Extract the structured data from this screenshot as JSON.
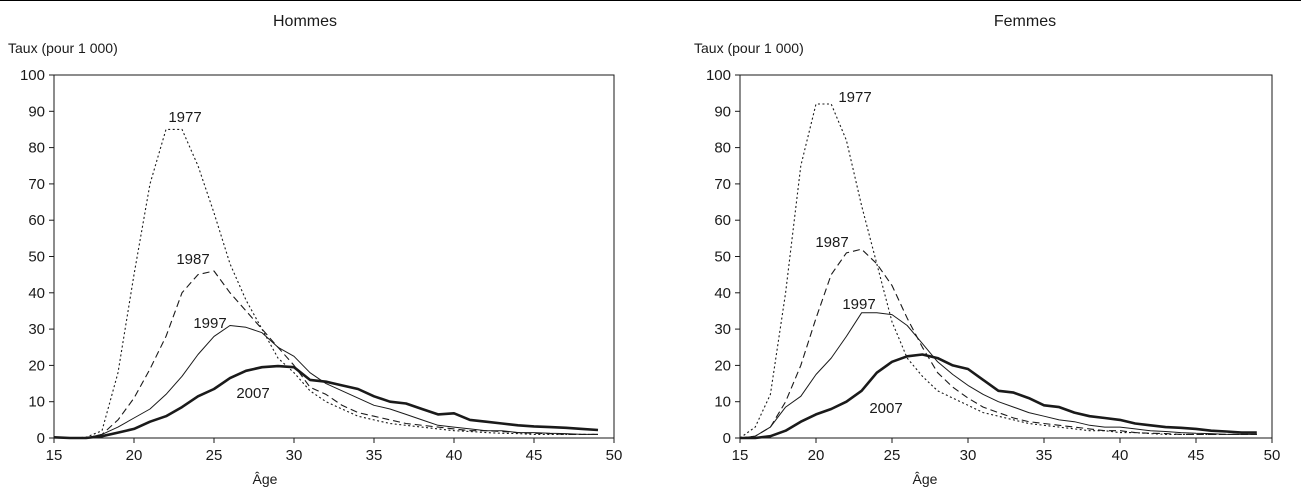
{
  "chart_data": [
    {
      "type": "line",
      "title": "Hommes",
      "ylabel": "Taux (pour 1 000)",
      "xlabel": "Âge",
      "xlim": [
        15,
        50
      ],
      "ylim": [
        0,
        100
      ],
      "xticks": [
        15,
        20,
        25,
        30,
        35,
        40,
        45,
        50
      ],
      "yticks": [
        0,
        10,
        20,
        30,
        40,
        50,
        60,
        70,
        80,
        90,
        100
      ],
      "grid": false,
      "series": [
        {
          "name": "1977",
          "style": "dotted",
          "x": [
            15,
            16,
            17,
            18,
            19,
            20,
            21,
            22,
            23,
            24,
            25,
            26,
            27,
            28,
            29,
            30,
            31,
            32,
            33,
            34,
            35,
            36,
            37,
            38,
            39,
            40,
            41,
            42,
            43,
            44,
            45,
            46,
            47,
            48,
            49
          ],
          "y": [
            0.2,
            0,
            0.2,
            2,
            18,
            45,
            70,
            85,
            85,
            75,
            62,
            48,
            38,
            30,
            22,
            18,
            13,
            10,
            8,
            6,
            5,
            4,
            3.5,
            3,
            2.5,
            2,
            1.8,
            1.5,
            1.3,
            1.2,
            1,
            1,
            1,
            1,
            1
          ]
        },
        {
          "name": "1987",
          "style": "dashed",
          "x": [
            15,
            16,
            17,
            18,
            19,
            20,
            21,
            22,
            23,
            24,
            25,
            26,
            27,
            28,
            29,
            30,
            31,
            32,
            33,
            34,
            35,
            36,
            37,
            38,
            39,
            40,
            41,
            42,
            43,
            44,
            45,
            46,
            47,
            48,
            49
          ],
          "y": [
            0.2,
            0,
            0,
            1,
            5,
            11,
            19,
            28,
            40,
            45,
            46,
            40,
            35,
            30,
            25,
            20,
            14,
            12,
            9,
            7,
            6,
            5,
            4,
            3.5,
            3,
            2.5,
            2,
            2,
            1.8,
            1.5,
            1.3,
            1.2,
            1,
            1,
            1
          ]
        },
        {
          "name": "1997",
          "style": "thin",
          "x": [
            15,
            16,
            17,
            18,
            19,
            20,
            21,
            22,
            23,
            24,
            25,
            26,
            27,
            28,
            29,
            30,
            31,
            32,
            33,
            34,
            35,
            36,
            37,
            38,
            39,
            40,
            41,
            42,
            43,
            44,
            45,
            46,
            47,
            48,
            49
          ],
          "y": [
            0.2,
            0,
            0,
            1,
            3,
            5.5,
            8,
            12,
            17,
            23,
            28,
            31,
            30.5,
            29,
            25,
            22.5,
            18,
            15,
            13,
            11,
            9,
            8,
            6.5,
            5,
            3.5,
            3,
            2.5,
            2,
            2,
            1.5,
            1.5,
            1.3,
            1.2,
            1,
            1
          ]
        },
        {
          "name": "2007",
          "style": "bold",
          "x": [
            15,
            16,
            17,
            18,
            19,
            20,
            21,
            22,
            23,
            24,
            25,
            26,
            27,
            28,
            29,
            30,
            31,
            32,
            33,
            34,
            35,
            36,
            37,
            38,
            39,
            40,
            41,
            42,
            43,
            44,
            45,
            46,
            47,
            48,
            49
          ],
          "y": [
            0.2,
            0,
            0,
            0.5,
            1.5,
            2.5,
            4.5,
            6,
            8.5,
            11.5,
            13.5,
            16.5,
            18.5,
            19.5,
            19.8,
            19.5,
            16,
            15.5,
            14.5,
            13.5,
            11.5,
            10,
            9.5,
            8,
            6.5,
            6.8,
            5,
            4.5,
            4,
            3.5,
            3.2,
            3,
            2.8,
            2.5,
            2.2
          ]
        }
      ]
    },
    {
      "type": "line",
      "title": "Femmes",
      "ylabel": "Taux (pour 1 000)",
      "xlabel": "Âge",
      "xlim": [
        15,
        50
      ],
      "ylim": [
        0,
        100
      ],
      "xticks": [
        15,
        20,
        25,
        30,
        35,
        40,
        45,
        50
      ],
      "yticks": [
        0,
        10,
        20,
        30,
        40,
        50,
        60,
        70,
        80,
        90,
        100
      ],
      "grid": false,
      "series": [
        {
          "name": "1977",
          "style": "dotted",
          "x": [
            15,
            16,
            17,
            18,
            19,
            20,
            21,
            22,
            23,
            24,
            25,
            26,
            27,
            28,
            29,
            30,
            31,
            32,
            33,
            34,
            35,
            36,
            37,
            38,
            39,
            40,
            41,
            42,
            43,
            44,
            45,
            46,
            47,
            48,
            49
          ],
          "y": [
            0,
            3,
            12,
            40,
            75,
            92,
            92,
            82,
            64,
            48,
            32,
            22,
            17,
            13,
            11,
            9,
            7,
            6,
            5,
            4,
            3.5,
            3,
            2.5,
            2,
            2,
            1.5,
            1.5,
            1.2,
            1,
            1,
            1,
            1,
            1,
            1,
            1
          ]
        },
        {
          "name": "1987",
          "style": "dashed",
          "x": [
            15,
            16,
            17,
            18,
            19,
            20,
            21,
            22,
            23,
            24,
            25,
            26,
            27,
            28,
            29,
            30,
            31,
            32,
            33,
            34,
            35,
            36,
            37,
            38,
            39,
            40,
            41,
            42,
            43,
            44,
            45,
            46,
            47,
            48,
            49
          ],
          "y": [
            0,
            0.5,
            3,
            10,
            20,
            33,
            45,
            51,
            52,
            48,
            42,
            33,
            25,
            18,
            14,
            11,
            8.5,
            7,
            5.5,
            4.5,
            4,
            3.5,
            3,
            2.5,
            2,
            2,
            1.5,
            1.3,
            1.2,
            1,
            1,
            1,
            1,
            1,
            1
          ]
        },
        {
          "name": "1997",
          "style": "thin",
          "x": [
            15,
            16,
            17,
            18,
            19,
            20,
            21,
            22,
            23,
            24,
            25,
            26,
            27,
            28,
            29,
            30,
            31,
            32,
            33,
            34,
            35,
            36,
            37,
            38,
            39,
            40,
            41,
            42,
            43,
            44,
            45,
            46,
            47,
            48,
            49
          ],
          "y": [
            0,
            0.5,
            3,
            8.5,
            11.5,
            17.5,
            22,
            28,
            34.5,
            34.5,
            34,
            31,
            26,
            21,
            17.5,
            14.5,
            12,
            10,
            8.5,
            7,
            6,
            5,
            4.5,
            3.5,
            3,
            3,
            2.5,
            2,
            1.8,
            1.5,
            1.3,
            1.2,
            1,
            1,
            1
          ]
        },
        {
          "name": "2007",
          "style": "bold",
          "x": [
            15,
            16,
            17,
            18,
            19,
            20,
            21,
            22,
            23,
            24,
            25,
            26,
            27,
            28,
            29,
            30,
            31,
            32,
            33,
            34,
            35,
            36,
            37,
            38,
            39,
            40,
            41,
            42,
            43,
            44,
            45,
            46,
            47,
            48,
            49
          ],
          "y": [
            0,
            0,
            0.5,
            2,
            4.5,
            6.5,
            8,
            10,
            13,
            18,
            21,
            22.5,
            23,
            22,
            20,
            19,
            16,
            13,
            12.5,
            11,
            9,
            8.5,
            7,
            6,
            5.5,
            5,
            4,
            3.5,
            3,
            2.8,
            2.5,
            2,
            1.8,
            1.5,
            1.5
          ]
        }
      ]
    }
  ]
}
